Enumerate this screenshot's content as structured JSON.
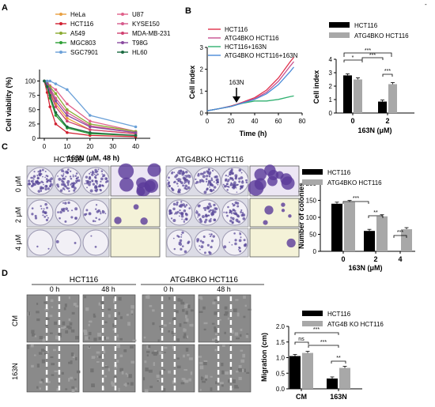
{
  "panels": {
    "A": "A",
    "B": "B",
    "C": "C",
    "D": "D"
  },
  "panelA": {
    "ylabel": "Cell viability (%)",
    "xlabel": "163N (μM, 48 h)",
    "yticks": [
      "0",
      "25",
      "50",
      "75",
      "100"
    ],
    "xticks": [
      "0",
      "10",
      "20",
      "30",
      "40"
    ],
    "legend": [
      {
        "name": "HeLa",
        "color": "#e8a040"
      },
      {
        "name": "U87",
        "color": "#e0608a"
      },
      {
        "name": "HCT116",
        "color": "#d02030"
      },
      {
        "name": "KYSE150",
        "color": "#d65a8c"
      },
      {
        "name": "A549",
        "color": "#8aaa30"
      },
      {
        "name": "MDA-MB-231",
        "color": "#d04070"
      },
      {
        "name": "MGC803",
        "color": "#2ea036"
      },
      {
        "name": "T98G",
        "color": "#8a4aa0"
      },
      {
        "name": "SGC7901",
        "color": "#6aa0d8"
      },
      {
        "name": "HL60",
        "color": "#1a6a40"
      }
    ]
  },
  "panelB": {
    "ylabel": "Cell index",
    "xlabel": "Time (h)",
    "yticks": [
      "0",
      "1",
      "2",
      "3"
    ],
    "xticks": [
      "0",
      "20",
      "40",
      "60",
      "80"
    ],
    "arrow_label": "163N",
    "legend": [
      {
        "name": "HCT116",
        "color": "#e0304a"
      },
      {
        "name": "ATG4BKO HCT116",
        "color": "#c85090"
      },
      {
        "name": "HCT116+163N",
        "color": "#30b070"
      },
      {
        "name": "ATG4BKO HCT116+163N",
        "color": "#4a8ad8"
      }
    ]
  },
  "panelB2": {
    "ylabel": "Cell index",
    "xlabel": "163N (μM)",
    "yticks": [
      "0",
      "1",
      "2",
      "3",
      "4"
    ],
    "xticks": [
      "0",
      "2"
    ],
    "legend": [
      "HCT116",
      "ATG4BKO HCT116"
    ],
    "sig": [
      "*",
      "***",
      "***",
      "***"
    ],
    "top_mark": "-"
  },
  "panelC": {
    "titles": [
      "HCT116",
      "ATG4BKO HCT116"
    ],
    "rows": [
      "0 μM",
      "2 μM",
      "4 μM"
    ],
    "bar_chart": {
      "ylabel": "Number of colonies",
      "xlabel": "163N (μM)",
      "yticks": [
        "0",
        "50",
        "100",
        "150",
        "200"
      ],
      "xticks": [
        "0",
        "2",
        "4"
      ],
      "legend": [
        "HCT116",
        "ATG4BKO HCT116"
      ],
      "sig": [
        "***",
        "**",
        "***"
      ]
    }
  },
  "panelD": {
    "titles": [
      "HCT116",
      "ATG4BKO HCT116"
    ],
    "times": [
      "0 h",
      "48 h",
      "0 h",
      "48 h"
    ],
    "rows": [
      "CM",
      "163N"
    ],
    "bar_chart": {
      "ylabel": "Migration (cm)",
      "yticks": [
        "0.0",
        "0.5",
        "1.0",
        "1.5",
        "2.0"
      ],
      "xticks": [
        "CM",
        "163N"
      ],
      "legend": [
        "HCT116",
        "ATG4B KO HCT116"
      ],
      "sig": [
        "ns",
        "***",
        "***",
        "**"
      ]
    }
  },
  "chart_data": [
    {
      "type": "line",
      "name": "A",
      "x": [
        0,
        1.25,
        2.5,
        5,
        10,
        20,
        40
      ],
      "ylim": [
        0,
        120
      ],
      "xlim": [
        0,
        45
      ],
      "series": [
        {
          "name": "HeLa",
          "values": [
            100,
            95,
            85,
            60,
            35,
            15,
            8
          ]
        },
        {
          "name": "U87",
          "values": [
            100,
            98,
            92,
            85,
            60,
            30,
            12
          ]
        },
        {
          "name": "HCT116",
          "values": [
            100,
            80,
            55,
            25,
            10,
            5,
            3
          ]
        },
        {
          "name": "KYSE150",
          "values": [
            100,
            96,
            88,
            70,
            45,
            22,
            10
          ]
        },
        {
          "name": "A549",
          "values": [
            100,
            97,
            90,
            78,
            50,
            25,
            12
          ]
        },
        {
          "name": "MDA-MB-231",
          "values": [
            100,
            92,
            80,
            55,
            30,
            15,
            8
          ]
        },
        {
          "name": "MGC803",
          "values": [
            100,
            90,
            70,
            40,
            18,
            8,
            5
          ]
        },
        {
          "name": "T98G",
          "values": [
            100,
            95,
            85,
            65,
            40,
            20,
            10
          ]
        },
        {
          "name": "SGC7901",
          "values": [
            100,
            100,
            100,
            95,
            85,
            40,
            20
          ]
        },
        {
          "name": "HL60",
          "values": [
            100,
            90,
            75,
            45,
            20,
            10,
            5
          ]
        }
      ]
    },
    {
      "type": "line",
      "name": "B",
      "x": [
        0,
        10,
        20,
        25,
        30,
        40,
        50,
        60,
        70,
        73
      ],
      "ylim": [
        0,
        3
      ],
      "xlim": [
        0,
        80
      ],
      "series": [
        {
          "name": "HCT116",
          "values": [
            0.1,
            0.2,
            0.32,
            0.4,
            0.5,
            0.7,
            1.05,
            1.6,
            2.35,
            2.55
          ]
        },
        {
          "name": "ATG4BKO HCT116",
          "values": [
            0.1,
            0.2,
            0.3,
            0.38,
            0.48,
            0.65,
            0.95,
            1.45,
            2.15,
            2.35
          ]
        },
        {
          "name": "HCT116+163N",
          "values": [
            0.1,
            0.2,
            0.3,
            0.38,
            0.45,
            0.55,
            0.55,
            0.62,
            0.75,
            0.78
          ]
        },
        {
          "name": "ATG4BKO HCT116+163N",
          "values": [
            0.1,
            0.2,
            0.3,
            0.38,
            0.46,
            0.62,
            0.88,
            1.3,
            1.9,
            2.1
          ]
        }
      ]
    },
    {
      "type": "bar",
      "name": "B-right",
      "categories": [
        "0",
        "2"
      ],
      "ylim": [
        0,
        4
      ],
      "series": [
        {
          "name": "HCT116",
          "values": [
            2.8,
            0.85
          ]
        },
        {
          "name": "ATG4BKO HCT116",
          "values": [
            2.5,
            2.15
          ]
        }
      ]
    },
    {
      "type": "bar",
      "name": "C",
      "categories": [
        "0",
        "2",
        "4"
      ],
      "ylim": [
        0,
        200
      ],
      "series": [
        {
          "name": "HCT116",
          "values": [
            140,
            60,
            0
          ]
        },
        {
          "name": "ATG4BKO HCT116",
          "values": [
            145,
            103,
            65
          ]
        }
      ]
    },
    {
      "type": "bar",
      "name": "D",
      "categories": [
        "CM",
        "163N"
      ],
      "ylim": [
        0,
        2
      ],
      "series": [
        {
          "name": "HCT116",
          "values": [
            1.05,
            0.33
          ]
        },
        {
          "name": "ATG4B KO HCT116",
          "values": [
            1.15,
            0.67
          ]
        }
      ]
    }
  ]
}
